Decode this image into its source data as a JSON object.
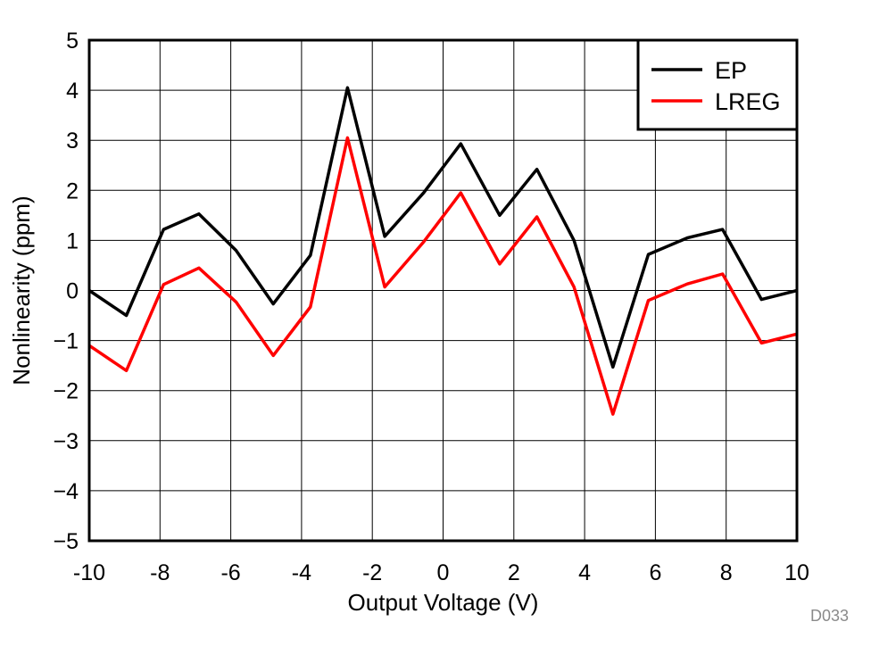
{
  "figure_id": "D033",
  "chart_data": {
    "type": "line",
    "xlabel": "Output Voltage (V)",
    "ylabel": "Nonlinearity (ppm)",
    "xlim": [
      -10,
      10
    ],
    "ylim": [
      -5,
      5
    ],
    "xticks": [
      -10,
      -8,
      -6,
      -4,
      -2,
      0,
      2,
      4,
      6,
      8,
      10
    ],
    "yticks": [
      -5,
      -4,
      -3,
      -2,
      -1,
      0,
      1,
      2,
      3,
      4,
      5
    ],
    "xtick_labels": [
      "-10",
      "-8",
      "-6",
      "-4",
      "-2",
      "0",
      "2",
      "4",
      "6",
      "8",
      "10"
    ],
    "ytick_labels": [
      "−5",
      "−4",
      "−3",
      "−2",
      "−1",
      "0",
      "1",
      "2",
      "3",
      "4",
      "5"
    ],
    "grid": true,
    "legend_position": "top-right",
    "series": [
      {
        "name": "EP",
        "color": "#000000",
        "x": [
          -10,
          -8.95,
          -7.9,
          -6.9,
          -5.85,
          -4.8,
          -3.75,
          -2.7,
          -1.65,
          -0.55,
          0.5,
          1.6,
          2.65,
          3.7,
          4.8,
          5.8,
          6.9,
          7.9,
          9.0,
          10
        ],
        "y": [
          0.0,
          -0.5,
          1.22,
          1.53,
          0.8,
          -0.27,
          0.7,
          4.05,
          1.08,
          1.95,
          2.93,
          1.5,
          2.42,
          1.0,
          -1.53,
          0.72,
          1.05,
          1.22,
          -0.18,
          0.0
        ]
      },
      {
        "name": "LREG",
        "color": "#ff0000",
        "x": [
          -10,
          -8.95,
          -7.9,
          -6.9,
          -5.85,
          -4.8,
          -3.75,
          -2.7,
          -1.65,
          -0.55,
          0.5,
          1.6,
          2.65,
          3.7,
          4.8,
          5.8,
          6.9,
          7.9,
          9.0,
          10
        ],
        "y": [
          -1.1,
          -1.6,
          0.12,
          0.45,
          -0.23,
          -1.3,
          -0.33,
          3.05,
          0.07,
          0.97,
          1.95,
          0.53,
          1.47,
          0.07,
          -2.47,
          -0.2,
          0.13,
          0.33,
          -1.05,
          -0.87
        ]
      }
    ]
  }
}
